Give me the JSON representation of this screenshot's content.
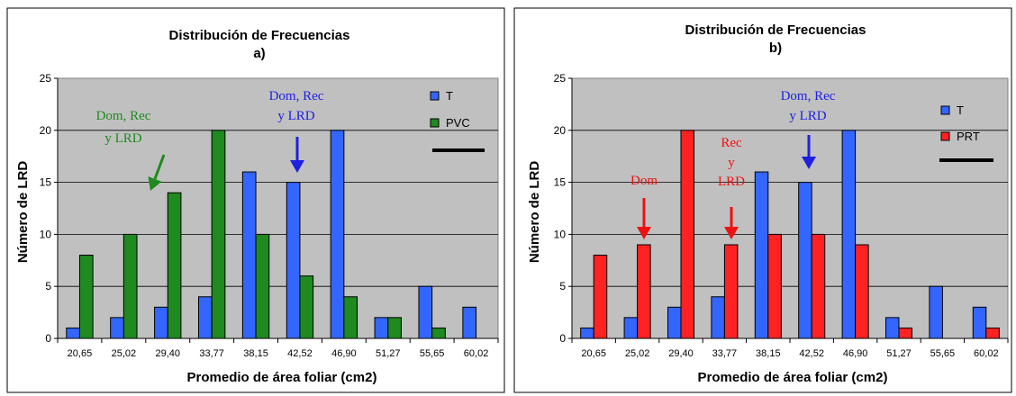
{
  "chart_data": [
    {
      "type": "bar",
      "title": "Distribución de Frecuencias",
      "subtitle": "a)",
      "xlabel": "Promedio de área foliar (cm2)",
      "ylabel": "Número de LRD",
      "ylim": [
        0,
        25
      ],
      "yticks": [
        0,
        5,
        10,
        15,
        20,
        25
      ],
      "categories": [
        "20,65",
        "25,02",
        "29,40",
        "33,77",
        "38,15",
        "42,52",
        "46,90",
        "51,27",
        "55,65",
        "60,02"
      ],
      "series": [
        {
          "name": "T",
          "color": "#3366FF",
          "values": [
            1,
            2,
            3,
            4,
            16,
            15,
            20,
            2,
            5,
            3
          ]
        },
        {
          "name": "PVC",
          "color": "#1F8A1F",
          "values": [
            8,
            10,
            14,
            20,
            10,
            6,
            4,
            2,
            1,
            0
          ]
        }
      ],
      "plot_background": "#C0C0C0",
      "legend_position": "top-right",
      "annotations": [
        {
          "lines": [
            "Dom, Rec",
            "y LRD"
          ],
          "color": "#1F8A1F",
          "points_to": "29,40"
        },
        {
          "lines": [
            "Dom, Rec",
            "y LRD"
          ],
          "color": "#1F1FE0",
          "points_to": "42,52"
        }
      ]
    },
    {
      "type": "bar",
      "title": "Distribución de Frecuencias",
      "subtitle": "b)",
      "xlabel": "Promedio de área foliar (cm2)",
      "ylabel": "Número de LRD",
      "ylim": [
        0,
        25
      ],
      "yticks": [
        0,
        5,
        10,
        15,
        20,
        25
      ],
      "categories": [
        "20,65",
        "25,02",
        "29,40",
        "33,77",
        "38,15",
        "42,52",
        "46,90",
        "51,27",
        "55,65",
        "60,02"
      ],
      "series": [
        {
          "name": "T",
          "color": "#3366FF",
          "values": [
            1,
            2,
            3,
            4,
            16,
            15,
            20,
            2,
            5,
            3
          ]
        },
        {
          "name": "PRT",
          "color": "#FF2222",
          "values": [
            8,
            9,
            20,
            9,
            10,
            10,
            9,
            1,
            0,
            1
          ]
        }
      ],
      "plot_background": "#C0C0C0",
      "legend_position": "top-right",
      "annotations": [
        {
          "lines": [
            "Dom"
          ],
          "color": "#EE1111",
          "points_to": "25,02"
        },
        {
          "lines": [
            "Rec",
            "y",
            "LRD"
          ],
          "color": "#EE1111",
          "points_to": "33,77"
        },
        {
          "lines": [
            "Dom, Rec",
            "y LRD"
          ],
          "color": "#1F1FE0",
          "points_to": "42,52"
        }
      ]
    }
  ]
}
